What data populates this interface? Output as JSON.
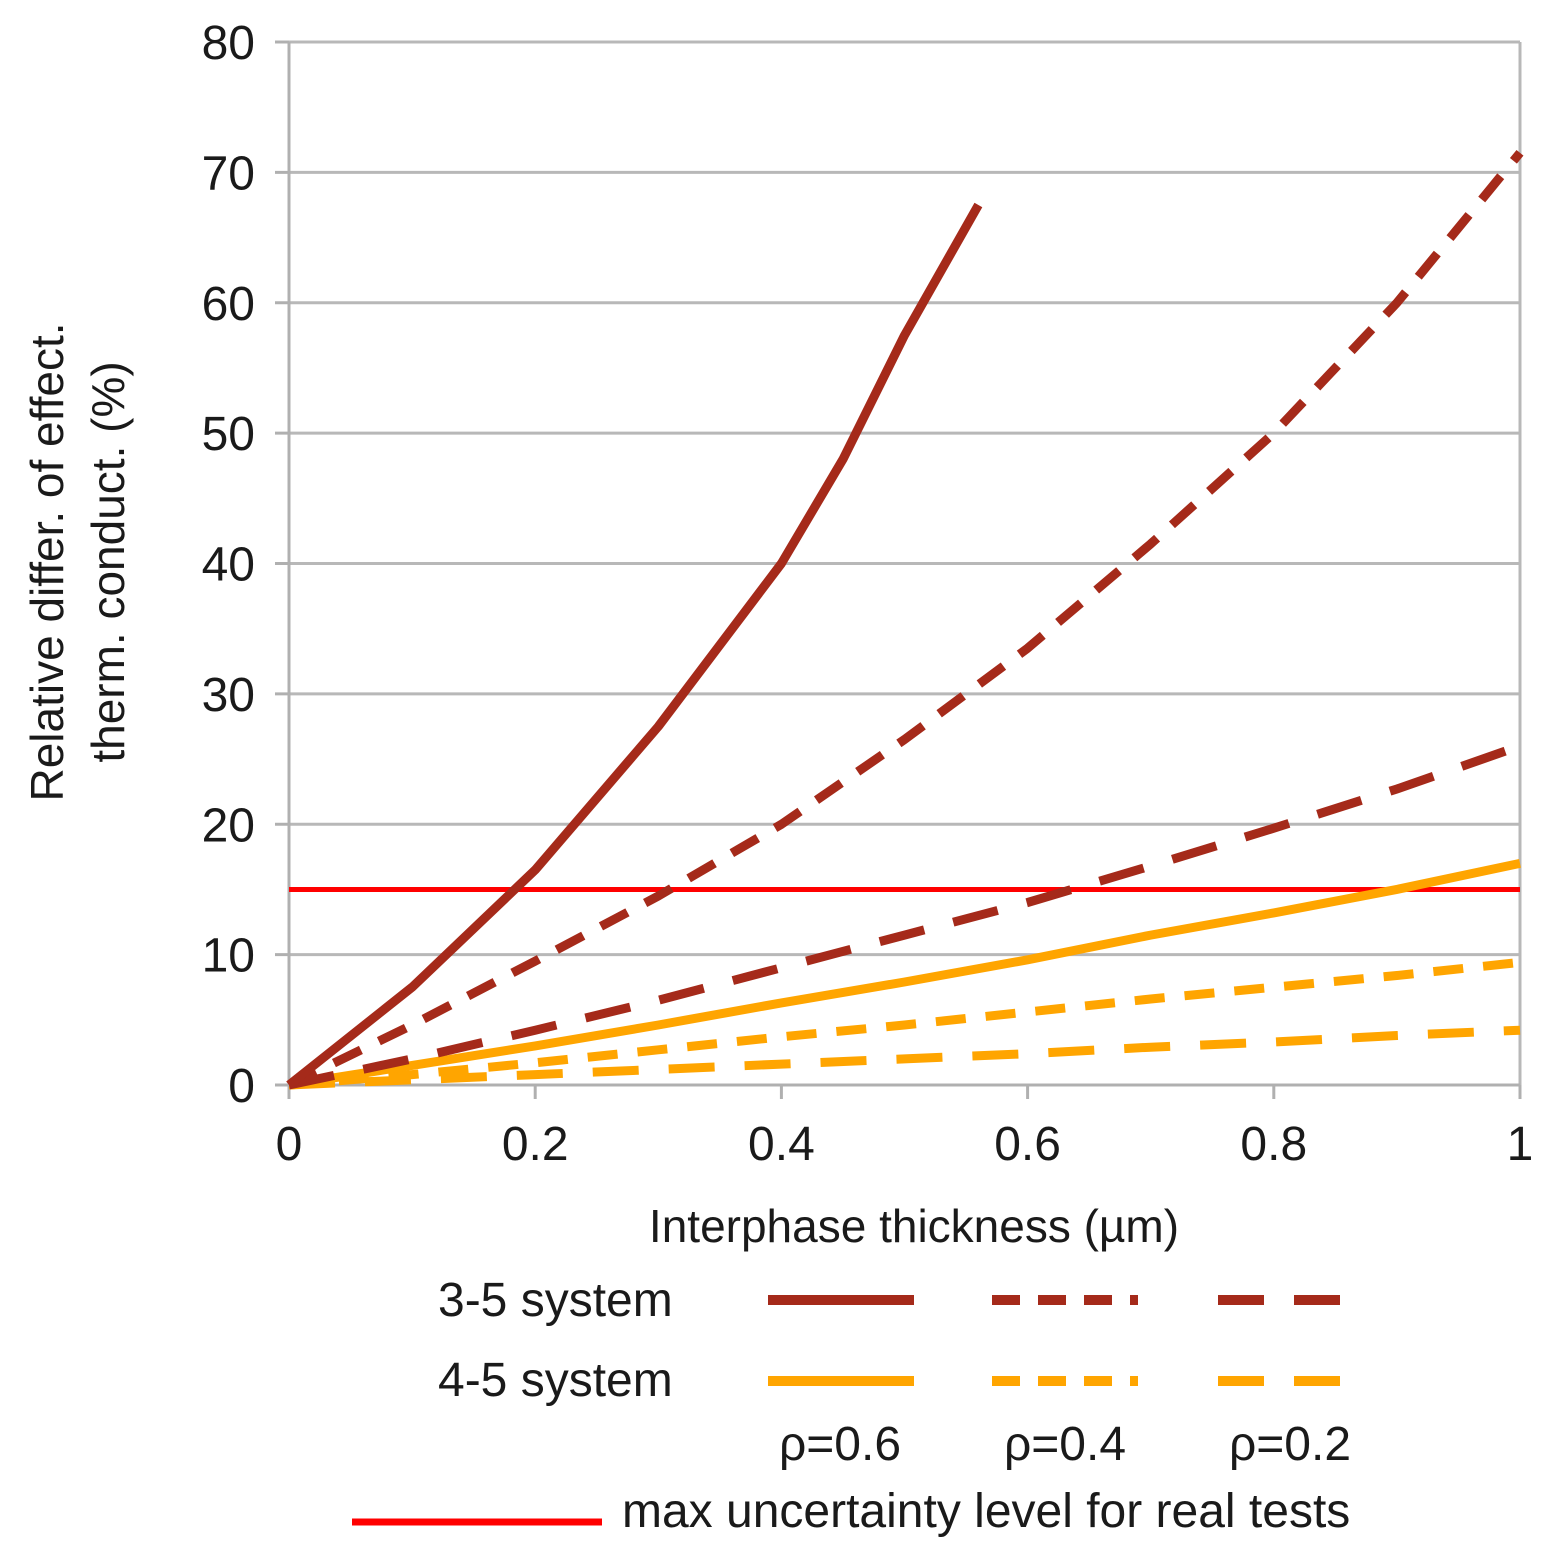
{
  "chart_data": {
    "type": "line",
    "xlabel": "Interphase thickness (µm)",
    "ylabel_line1": "Relative differ. of effect.",
    "ylabel_line2": "therm. conduct. (%)",
    "xlim": [
      0,
      1
    ],
    "ylim": [
      0,
      80
    ],
    "x_ticks": [
      0,
      0.2,
      0.4,
      0.6,
      0.8,
      1
    ],
    "x_tick_labels": [
      "0",
      "0.2",
      "0.4",
      "0.6",
      "0.8",
      "1"
    ],
    "y_ticks": [
      0,
      10,
      20,
      30,
      40,
      50,
      60,
      70,
      80
    ],
    "y_tick_labels": [
      "0",
      "10",
      "20",
      "30",
      "40",
      "50",
      "60",
      "70",
      "80"
    ],
    "grid": true,
    "colors": {
      "system_3_5": "#a52a1a",
      "system_4_5": "#ffa500",
      "threshold": "#ff0000",
      "grid": "#b8b8b8",
      "axis": "#b0b0b0"
    },
    "series": [
      {
        "name": "3-5 system ρ=0.6",
        "system": "3-5",
        "rho": 0.6,
        "dash": "solid",
        "x": [
          0,
          0.1,
          0.2,
          0.3,
          0.4,
          0.45,
          0.5,
          0.56
        ],
        "y": [
          0,
          7.5,
          16.5,
          27.5,
          40,
          48,
          57.5,
          67.5
        ]
      },
      {
        "name": "3-5 system ρ=0.4",
        "system": "3-5",
        "rho": 0.4,
        "dash": "short",
        "x": [
          0,
          0.1,
          0.2,
          0.3,
          0.4,
          0.5,
          0.6,
          0.7,
          0.8,
          0.9,
          1.0
        ],
        "y": [
          0,
          4.6,
          9.5,
          14.5,
          20,
          26.5,
          33.5,
          41.5,
          50,
          60,
          71.5
        ]
      },
      {
        "name": "3-5 system ρ=0.2",
        "system": "3-5",
        "rho": 0.2,
        "dash": "long",
        "x": [
          0,
          0.1,
          0.2,
          0.3,
          0.4,
          0.5,
          0.6,
          0.7,
          0.8,
          0.9,
          1.0
        ],
        "y": [
          0,
          2,
          4.2,
          6.5,
          9,
          11.5,
          14,
          16.8,
          19.7,
          22.7,
          26
        ]
      },
      {
        "name": "4-5 system ρ=0.6",
        "system": "4-5",
        "rho": 0.6,
        "dash": "solid",
        "x": [
          0,
          0.1,
          0.2,
          0.3,
          0.4,
          0.5,
          0.6,
          0.7,
          0.8,
          0.9,
          1.0
        ],
        "y": [
          0,
          1.5,
          3,
          4.6,
          6.3,
          7.9,
          9.6,
          11.5,
          13.2,
          15,
          17
        ]
      },
      {
        "name": "4-5 system ρ=0.4",
        "system": "4-5",
        "rho": 0.4,
        "dash": "short",
        "x": [
          0,
          0.1,
          0.2,
          0.3,
          0.4,
          0.5,
          0.6,
          0.7,
          0.8,
          0.9,
          1.0
        ],
        "y": [
          0,
          0.8,
          1.7,
          2.7,
          3.7,
          4.6,
          5.6,
          6.6,
          7.5,
          8.4,
          9.4
        ]
      },
      {
        "name": "4-5 system ρ=0.2",
        "system": "4-5",
        "rho": 0.2,
        "dash": "long",
        "x": [
          0,
          0.1,
          0.2,
          0.3,
          0.4,
          0.5,
          0.6,
          0.7,
          0.8,
          0.9,
          1.0
        ],
        "y": [
          0,
          0.4,
          0.8,
          1.2,
          1.6,
          2,
          2.4,
          2.9,
          3.3,
          3.8,
          4.2
        ]
      }
    ],
    "threshold": {
      "name": "max uncertainty level for real tests",
      "y": 15
    },
    "legend": {
      "rows": [
        {
          "label": "3-5 system",
          "system": "3-5"
        },
        {
          "label": "4-5 system",
          "system": "4-5"
        }
      ],
      "rho_labels": [
        "ρ=0.6",
        "ρ=0.4",
        "ρ=0.2"
      ],
      "threshold_label": "max uncertainty level for real tests",
      "placement": "bottom"
    }
  }
}
